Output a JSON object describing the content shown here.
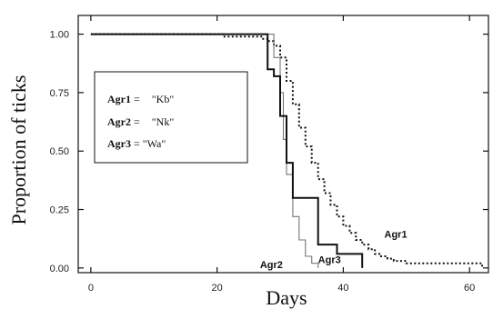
{
  "chart_data": {
    "type": "line",
    "xlabel": "Days",
    "ylabel": "Proportion of ticks",
    "xlim": [
      -2,
      63
    ],
    "ylim": [
      -0.02,
      1.08
    ],
    "xticks": [
      0,
      20,
      40,
      60
    ],
    "yticks": [
      0.0,
      0.25,
      0.5,
      0.75,
      1.0
    ],
    "xtick_labels": [
      "0",
      "20",
      "40",
      "60"
    ],
    "ytick_labels": [
      "0.00",
      "0.25",
      "0.50",
      "0.75",
      "1.00"
    ],
    "legend": {
      "placement": "upper-left",
      "entries": [
        {
          "key": "Agr1",
          "eq": " = ",
          "value": "\"Kb\""
        },
        {
          "key": "Agr2",
          "eq": " = ",
          "value": "\"Nk\""
        },
        {
          "key": "Agr3",
          "eq": " = ",
          "value": "\"Wa\""
        }
      ]
    },
    "series": [
      {
        "name": "Agr1",
        "style": "dotted",
        "color": "#111111",
        "label_at": [
          46.5,
          0.13
        ],
        "points": [
          [
            0,
            1.0
          ],
          [
            21,
            1.0
          ],
          [
            21,
            0.99
          ],
          [
            27,
            0.99
          ],
          [
            27,
            0.98
          ],
          [
            28,
            0.98
          ],
          [
            28,
            0.97
          ],
          [
            29,
            0.97
          ],
          [
            29,
            0.95
          ],
          [
            30,
            0.95
          ],
          [
            30,
            0.9
          ],
          [
            31,
            0.9
          ],
          [
            31,
            0.8
          ],
          [
            32,
            0.8
          ],
          [
            32,
            0.7
          ],
          [
            33,
            0.7
          ],
          [
            33,
            0.6
          ],
          [
            34,
            0.6
          ],
          [
            34,
            0.52
          ],
          [
            35,
            0.52
          ],
          [
            35,
            0.45
          ],
          [
            36,
            0.45
          ],
          [
            36,
            0.38
          ],
          [
            37,
            0.38
          ],
          [
            37,
            0.32
          ],
          [
            38,
            0.32
          ],
          [
            38,
            0.27
          ],
          [
            39,
            0.27
          ],
          [
            39,
            0.22
          ],
          [
            40,
            0.22
          ],
          [
            40,
            0.18
          ],
          [
            41,
            0.18
          ],
          [
            41,
            0.15
          ],
          [
            42,
            0.15
          ],
          [
            42,
            0.12
          ],
          [
            43,
            0.12
          ],
          [
            43,
            0.1
          ],
          [
            44,
            0.1
          ],
          [
            44,
            0.08
          ],
          [
            45,
            0.08
          ],
          [
            45,
            0.06
          ],
          [
            46,
            0.06
          ],
          [
            46,
            0.05
          ],
          [
            47,
            0.05
          ],
          [
            47,
            0.04
          ],
          [
            48,
            0.04
          ],
          [
            48,
            0.03
          ],
          [
            50,
            0.03
          ],
          [
            50,
            0.02
          ],
          [
            62,
            0.02
          ],
          [
            62,
            0.0
          ]
        ]
      },
      {
        "name": "Agr2",
        "style": "solid-thin",
        "color": "#777777",
        "label_at": [
          26.8,
          0.0
        ],
        "points": [
          [
            0,
            1.0
          ],
          [
            29,
            1.0
          ],
          [
            29,
            0.9
          ],
          [
            30,
            0.9
          ],
          [
            30,
            0.75
          ],
          [
            30.5,
            0.75
          ],
          [
            30.5,
            0.55
          ],
          [
            31,
            0.55
          ],
          [
            31,
            0.4
          ],
          [
            32,
            0.4
          ],
          [
            32,
            0.22
          ],
          [
            33,
            0.22
          ],
          [
            33,
            0.12
          ],
          [
            34,
            0.12
          ],
          [
            34,
            0.05
          ],
          [
            35,
            0.05
          ],
          [
            35,
            0.02
          ],
          [
            36,
            0.02
          ],
          [
            36,
            0.0
          ]
        ]
      },
      {
        "name": "Agr3",
        "style": "solid-thick",
        "color": "#111111",
        "label_at": [
          36.0,
          0.02
        ],
        "points": [
          [
            0,
            1.0
          ],
          [
            28,
            1.0
          ],
          [
            28,
            0.85
          ],
          [
            29,
            0.85
          ],
          [
            29,
            0.82
          ],
          [
            30,
            0.82
          ],
          [
            30,
            0.65
          ],
          [
            31,
            0.65
          ],
          [
            31,
            0.45
          ],
          [
            32,
            0.45
          ],
          [
            32,
            0.3
          ],
          [
            36,
            0.3
          ],
          [
            36,
            0.1
          ],
          [
            39,
            0.1
          ],
          [
            39,
            0.06
          ],
          [
            43,
            0.06
          ],
          [
            43,
            0.0
          ]
        ]
      }
    ]
  }
}
